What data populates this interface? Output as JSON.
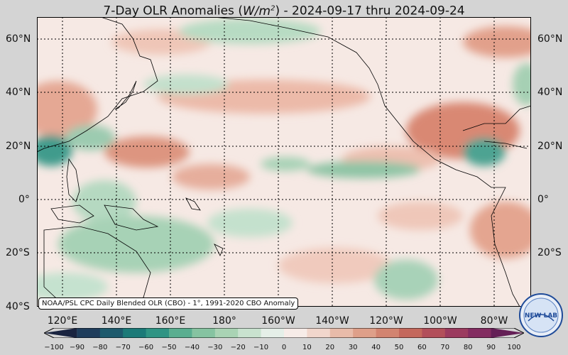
{
  "title": {
    "prefix": "7-Day OLR Anomalies (",
    "units_main": "W/m",
    "units_exp": "2",
    "suffix": ") - 2024-09-17 thru 2024-09-24"
  },
  "credit": "NOAA/PSL CPC Daily Blended OLR (CBO) - 1°, 1991-2020 CBO Anomaly",
  "lat_labels": [
    "60°N",
    "40°N",
    "20°N",
    "0°",
    "20°S",
    "40°S"
  ],
  "lon_labels": [
    "120°E",
    "140°E",
    "160°E",
    "180°",
    "160°W",
    "140°W",
    "120°W",
    "100°W",
    "80°W"
  ],
  "colorbar": {
    "ticks": [
      "−100",
      "−90",
      "−80",
      "−70",
      "−60",
      "−50",
      "−40",
      "−30",
      "−20",
      "−10",
      "0",
      "10",
      "20",
      "30",
      "40",
      "50",
      "60",
      "70",
      "80",
      "90",
      "100"
    ],
    "colors": [
      "#1a2440",
      "#1f3d5c",
      "#1d5a6d",
      "#1b7a78",
      "#2f9484",
      "#5aae90",
      "#86c3a1",
      "#a9d3b4",
      "#c9e2cf",
      "#e5efe8",
      "#f7ece8",
      "#f1d6cc",
      "#e8bba9",
      "#de9f89",
      "#d28470",
      "#c4685c",
      "#b24f5a",
      "#9b3b5f",
      "#832c61",
      "#641f56"
    ]
  },
  "map": {
    "region": "Pacific Ocean, 110°E–70°W, 40°S–67°N",
    "grid": true,
    "anomaly_colors": {
      "background": "#f6e9e4",
      "positive_light": "#eec3b4",
      "positive_strong": "#db8f79",
      "negative_light": "#cfe6d6",
      "negative_mid": "#9fcdb1",
      "negative_strong": "#2f8f84"
    }
  },
  "logo": {
    "text": "NEW LAB"
  }
}
